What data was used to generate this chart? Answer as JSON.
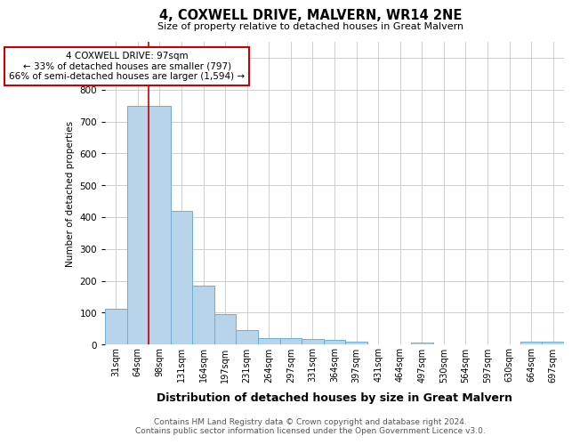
{
  "title": "4, COXWELL DRIVE, MALVERN, WR14 2NE",
  "subtitle": "Size of property relative to detached houses in Great Malvern",
  "xlabel": "Distribution of detached houses by size in Great Malvern",
  "ylabel": "Number of detached properties",
  "categories": [
    "31sqm",
    "64sqm",
    "98sqm",
    "131sqm",
    "164sqm",
    "197sqm",
    "231sqm",
    "264sqm",
    "297sqm",
    "331sqm",
    "364sqm",
    "397sqm",
    "431sqm",
    "464sqm",
    "497sqm",
    "530sqm",
    "564sqm",
    "597sqm",
    "630sqm",
    "664sqm",
    "697sqm"
  ],
  "values": [
    112,
    748,
    748,
    420,
    185,
    95,
    44,
    20,
    20,
    18,
    15,
    8,
    0,
    0,
    7,
    0,
    0,
    0,
    0,
    8,
    8
  ],
  "bar_color": "#b8d4ea",
  "bar_edge_color": "#6aaed6",
  "property_line_color": "#cc0000",
  "annotation_text": "4 COXWELL DRIVE: 97sqm\n← 33% of detached houses are smaller (797)\n66% of semi-detached houses are larger (1,594) →",
  "annotation_box_color": "#ffffff",
  "annotation_box_edge": "#cc0000",
  "ylim": [
    0,
    950
  ],
  "yticks": [
    0,
    100,
    200,
    300,
    400,
    500,
    600,
    700,
    800,
    900
  ],
  "footer": "Contains HM Land Registry data © Crown copyright and database right 2024.\nContains public sector information licensed under the Open Government Licence v3.0.",
  "background_color": "#ffffff",
  "grid_color": "#c8c8c8"
}
